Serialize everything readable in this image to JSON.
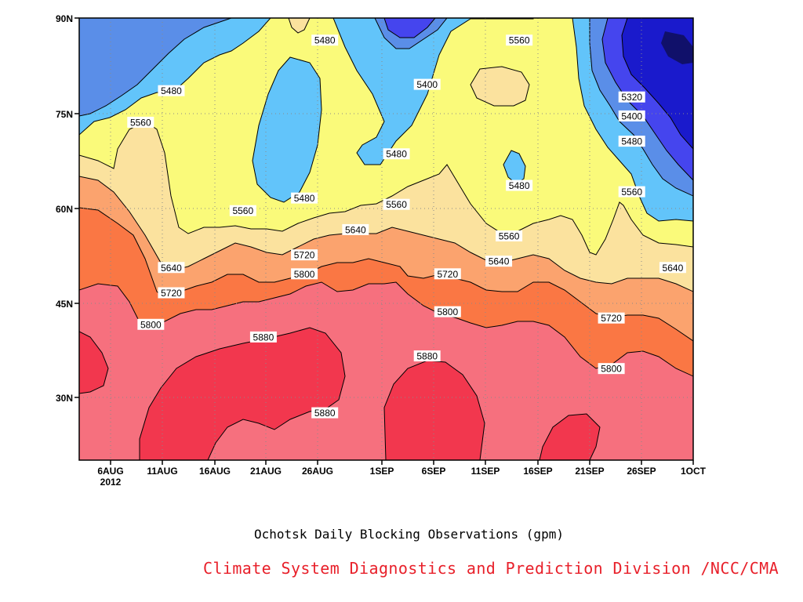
{
  "chart_data": {
    "type": "heatmap",
    "subtype": "filled-contour (Hovmoller, time vs latitude)",
    "title": "",
    "subtitle": "Ochotsk Daily Blocking Observations (gpm)",
    "credit": "Climate System Diagnostics and Prediction Division /NCC/CMA",
    "variable_unit": "gpm",
    "x_axis": {
      "type": "date",
      "range": [
        "2012-08-02",
        "2012-10-01"
      ],
      "ticks": [
        "6AUG",
        "11AUG",
        "16AUG",
        "21AUG",
        "26AUG",
        "1SEP",
        "6SEP",
        "11SEP",
        "16SEP",
        "21SEP",
        "26SEP",
        "1OCT"
      ],
      "year_label": "2012"
    },
    "y_axis": {
      "range": [
        20,
        90
      ],
      "ticks": [
        "30N",
        "45N",
        "60N",
        "75N",
        "90N"
      ]
    },
    "contour_levels": [
      5240,
      5320,
      5400,
      5480,
      5560,
      5640,
      5720,
      5800,
      5880
    ],
    "fill_colors": {
      "below_5240": "#1a1acc",
      "5240_5320": "#4545ee",
      "5320_5400": "#5a8ee8",
      "5400_5480": "#62c4fa",
      "5480_5560": "#fafa7a",
      "5560_5640": "#fbe29e",
      "5640_5720": "#fba36e",
      "5720_5800": "#fa7744",
      "5800_5880": "#f6707e",
      "above_5880": "#f2374e"
    },
    "contour_labels": [
      {
        "value": "5480",
        "date": "2012-08-11",
        "lat": 78.5
      },
      {
        "value": "5560",
        "date": "2012-08-08",
        "lat": 73.5
      },
      {
        "value": "5480",
        "date": "2012-08-26",
        "lat": 86.5
      },
      {
        "value": "5400",
        "date": "2012-09-05",
        "lat": 79.5
      },
      {
        "value": "5560",
        "date": "2012-09-14",
        "lat": 86.5
      },
      {
        "value": "5320",
        "date": "2012-09-25",
        "lat": 77.5
      },
      {
        "value": "5400",
        "date": "2012-09-25",
        "lat": 74.5
      },
      {
        "value": "5480",
        "date": "2012-09-25",
        "lat": 70.5
      },
      {
        "value": "5480",
        "date": "2012-09-02",
        "lat": 68.5
      },
      {
        "value": "5480",
        "date": "2012-09-14",
        "lat": 63.5
      },
      {
        "value": "5560",
        "date": "2012-09-25",
        "lat": 62.5
      },
      {
        "value": "5480",
        "date": "2012-08-24",
        "lat": 61.5
      },
      {
        "value": "5560",
        "date": "2012-08-18",
        "lat": 59.5
      },
      {
        "value": "5560",
        "date": "2012-09-02",
        "lat": 60.5
      },
      {
        "value": "5640",
        "date": "2012-08-29",
        "lat": 56.5
      },
      {
        "value": "5560",
        "date": "2012-09-13",
        "lat": 55.5
      },
      {
        "value": "5720",
        "date": "2012-08-24",
        "lat": 52.5
      },
      {
        "value": "5640",
        "date": "2012-08-11",
        "lat": 50.5
      },
      {
        "value": "5640",
        "date": "2012-09-12",
        "lat": 51.5
      },
      {
        "value": "5640",
        "date": "2012-09-29",
        "lat": 50.5
      },
      {
        "value": "5800",
        "date": "2012-08-24",
        "lat": 49.5
      },
      {
        "value": "5720",
        "date": "2012-09-07",
        "lat": 49.5
      },
      {
        "value": "5720",
        "date": "2012-08-11",
        "lat": 46.5
      },
      {
        "value": "5800",
        "date": "2012-08-09",
        "lat": 41.5
      },
      {
        "value": "5800",
        "date": "2012-09-07",
        "lat": 43.5
      },
      {
        "value": "5720",
        "date": "2012-09-23",
        "lat": 42.5
      },
      {
        "value": "5880",
        "date": "2012-08-20",
        "lat": 39.5
      },
      {
        "value": "5880",
        "date": "2012-09-05",
        "lat": 36.5
      },
      {
        "value": "5800",
        "date": "2012-09-23",
        "lat": 34.5
      },
      {
        "value": "5880",
        "date": "2012-08-26",
        "lat": 27.5
      }
    ],
    "grid": true,
    "legend": "none"
  }
}
